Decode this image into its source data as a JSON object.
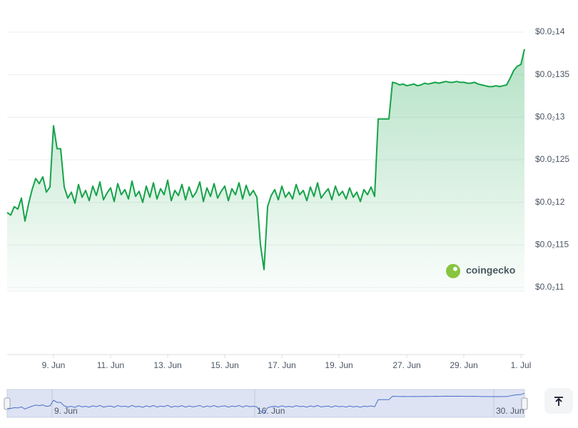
{
  "chart_data": {
    "type": "line",
    "color": "#16a34a",
    "grid": true,
    "ylim": [
      0.0011,
      0.0014
    ],
    "yticks": [
      {
        "value": 0.0014,
        "label": "$0.0₂14"
      },
      {
        "value": 0.00135,
        "label": "$0.0₂135"
      },
      {
        "value": 0.0013,
        "label": "$0.0₂13"
      },
      {
        "value": 0.00125,
        "label": "$0.0₂125"
      },
      {
        "value": 0.0012,
        "label": "$0.0₂12"
      },
      {
        "value": 0.00115,
        "label": "$0.0₂115"
      },
      {
        "value": 0.0011,
        "label": "$0.0₂11"
      }
    ],
    "categories": [
      null,
      null,
      null,
      null,
      null,
      null,
      null,
      null,
      null,
      null,
      null,
      null,
      null,
      "9. Jun",
      null,
      null,
      null,
      null,
      null,
      null,
      null,
      null,
      null,
      null,
      null,
      null,
      null,
      null,
      null,
      "11. Jun",
      null,
      null,
      null,
      null,
      null,
      null,
      null,
      null,
      null,
      null,
      null,
      null,
      null,
      null,
      null,
      "13. Jun",
      null,
      null,
      null,
      null,
      null,
      null,
      null,
      null,
      null,
      null,
      null,
      null,
      null,
      null,
      null,
      "15. Jun",
      null,
      null,
      null,
      null,
      null,
      null,
      null,
      null,
      null,
      null,
      null,
      null,
      null,
      null,
      null,
      "17. Jun",
      null,
      null,
      null,
      null,
      null,
      null,
      null,
      null,
      null,
      null,
      null,
      null,
      null,
      null,
      null,
      "19. Jun",
      null,
      null,
      null,
      null,
      null,
      null,
      null,
      null,
      null,
      null,
      null,
      null,
      null,
      null,
      null,
      null,
      null,
      null,
      "27. Jun",
      null,
      null,
      null,
      null,
      null,
      null,
      null,
      null,
      null,
      null,
      null,
      null,
      null,
      null,
      null,
      "29. Jun",
      null,
      null,
      null,
      null,
      null,
      null,
      null,
      null,
      null,
      null,
      null,
      null,
      null,
      null,
      null,
      "1. Jul",
      null
    ],
    "values": [
      0.001188,
      0.001185,
      0.001195,
      0.001192,
      0.001205,
      0.001178,
      0.001198,
      0.001215,
      0.001228,
      0.001222,
      0.00123,
      0.001212,
      0.001218,
      0.00129,
      0.001263,
      0.001263,
      0.001218,
      0.001205,
      0.001212,
      0.001199,
      0.001221,
      0.001206,
      0.001214,
      0.001202,
      0.001219,
      0.001208,
      0.001224,
      0.001203,
      0.001211,
      0.001217,
      0.001201,
      0.001222,
      0.001209,
      0.001215,
      0.001204,
      0.001225,
      0.001207,
      0.001213,
      0.0012,
      0.001219,
      0.001206,
      0.001223,
      0.001204,
      0.001216,
      0.001209,
      0.001226,
      0.001202,
      0.001214,
      0.001208,
      0.001221,
      0.001203,
      0.001218,
      0.001206,
      0.001212,
      0.001224,
      0.001201,
      0.001217,
      0.001207,
      0.001222,
      0.001205,
      0.001213,
      0.001219,
      0.001202,
      0.001216,
      0.001209,
      0.001223,
      0.001204,
      0.00122,
      0.001208,
      0.001214,
      0.001206,
      0.00115,
      0.001121,
      0.001195,
      0.001208,
      0.001215,
      0.001203,
      0.001219,
      0.001206,
      0.001212,
      0.001204,
      0.001221,
      0.001209,
      0.001214,
      0.001202,
      0.001218,
      0.001207,
      0.001223,
      0.001205,
      0.001211,
      0.001216,
      0.001203,
      0.001219,
      0.001208,
      0.001213,
      0.001204,
      0.001217,
      0.001206,
      0.001212,
      0.001201,
      0.001215,
      0.001209,
      0.001218,
      0.001207,
      0.001298,
      0.001298,
      0.001298,
      0.001298,
      0.001341,
      0.00134,
      0.001338,
      0.001339,
      0.001337,
      0.001338,
      0.001339,
      0.001337,
      0.001338,
      0.00134,
      0.001339,
      0.00134,
      0.001341,
      0.00134,
      0.001341,
      0.001342,
      0.001341,
      0.001341,
      0.001342,
      0.001341,
      0.001341,
      0.00134,
      0.00134,
      0.001341,
      0.001339,
      0.001338,
      0.001337,
      0.001336,
      0.001336,
      0.001337,
      0.001336,
      0.001337,
      0.001338,
      0.001346,
      0.001355,
      0.00136,
      0.001362,
      0.00138
    ],
    "watermark": "coingecko",
    "navigator_labels": [
      "9. Jun",
      "16. Jun",
      "30. Jun"
    ]
  }
}
